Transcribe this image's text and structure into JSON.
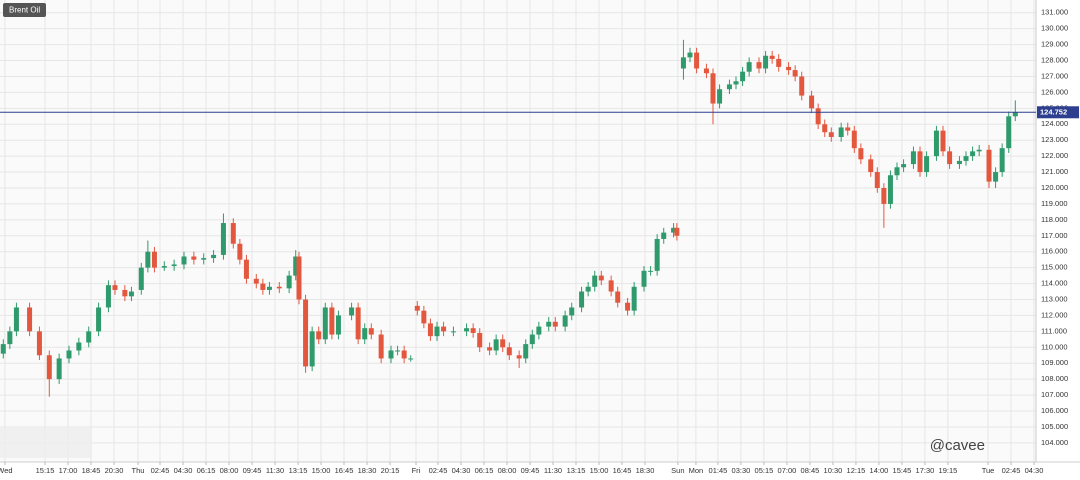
{
  "chart_data": {
    "type": "candlestick",
    "title": "Brent Oil",
    "watermark": "@cavee",
    "up_color": "#2f9a6c",
    "down_color": "#e4573f",
    "grid": true,
    "current_price": 124.752,
    "current_price_color": "#2e3f8f",
    "x": [
      1,
      3,
      5,
      9,
      12,
      15,
      18,
      21,
      24,
      27,
      30,
      33,
      35,
      38,
      40,
      43,
      45,
      47,
      50,
      53,
      56,
      59,
      62,
      65,
      68,
      71,
      73,
      75,
      78,
      80,
      82,
      85,
      88,
      90,
      91,
      93,
      95,
      97,
      99,
      101,
      103,
      107,
      109,
      111,
      113,
      116,
      119,
      121,
      123,
      125,
      127,
      129,
      131,
      133,
      135,
      138,
      142,
      144,
      146,
      149,
      151,
      153,
      155,
      158,
      160,
      162,
      164,
      167,
      169,
      172,
      174,
      177,
      179,
      181,
      183,
      186,
      188,
      191,
      193,
      196,
      198,
      200,
      202,
      205,
      206,
      208,
      210,
      212,
      215,
      217,
      219,
      222,
      224,
      226,
      228,
      231,
      233,
      235,
      237,
      240,
      242,
      244,
      247,
      249,
      251,
      253,
      256,
      258,
      260,
      262,
      265,
      267,
      269,
      271,
      273,
      275,
      278,
      280,
      282,
      285,
      287,
      289,
      292,
      294,
      296,
      298,
      301,
      303,
      305,
      307,
      309
    ],
    "open": [
      109.6,
      110.2,
      111,
      112.5,
      111,
      109.5,
      108,
      109.3,
      109.8,
      110.3,
      111,
      112.5,
      113.9,
      113.6,
      113.2,
      113.6,
      115,
      116,
      115,
      115.1,
      115.2,
      115.7,
      115.5,
      115.6,
      115.8,
      117.8,
      116.5,
      115.5,
      114.3,
      114,
      113.6,
      113.8,
      113.7,
      114.5,
      115.7,
      113,
      108.8,
      111,
      110.5,
      112.5,
      110.8,
      112,
      112.5,
      110.5,
      111.2,
      110.8,
      109.3,
      109.8,
      109.8,
      109.3,
      112.6,
      112.3,
      111.5,
      110.7,
      111.3,
      111,
      111,
      111.2,
      110.9,
      110,
      109.8,
      110.5,
      110,
      109.5,
      109.3,
      110.2,
      110.8,
      111.3,
      111.6,
      111.3,
      112,
      112.5,
      113.5,
      113.8,
      114.5,
      114.2,
      113.5,
      112.8,
      112.3,
      113.8,
      114.8,
      114.8,
      116.8,
      117.2,
      117.5,
      127.5,
      128.2,
      128.5,
      127.5,
      127.2,
      125.3,
      126.2,
      126.5,
      126.7,
      127.3,
      127.9,
      127.5,
      128.3,
      128.1,
      127.6,
      127.4,
      127,
      125.8,
      125,
      124,
      123.5,
      123.2,
      123.8,
      123.6,
      122.5,
      121.8,
      121,
      120,
      119,
      120.8,
      121.3,
      121.5,
      122.3,
      121,
      122,
      123.6,
      122.3,
      121.5,
      121.7,
      122,
      122.3,
      122.4,
      120.4,
      121,
      122.5,
      124.5
    ],
    "high": [
      110.5,
      111.3,
      112.8,
      112.8,
      111.3,
      109.8,
      109.6,
      110.1,
      110.6,
      111.3,
      112.8,
      114.2,
      114.2,
      113.9,
      113.8,
      115.3,
      116.7,
      116.3,
      115.4,
      115.5,
      116,
      116,
      115.9,
      116.1,
      118.4,
      118.1,
      116.8,
      115.8,
      114.6,
      114.3,
      114.1,
      114.1,
      114.8,
      116.1,
      116,
      113.3,
      111.3,
      111.3,
      112.8,
      112.8,
      112.3,
      112.8,
      112.8,
      111.5,
      111.5,
      111.1,
      110.1,
      110.1,
      110.1,
      109.5,
      112.9,
      112.6,
      111.8,
      111.6,
      111.6,
      111.3,
      111.5,
      111.5,
      111.2,
      110.3,
      110.8,
      110.8,
      110.3,
      109.8,
      110.5,
      111.1,
      111.6,
      111.9,
      111.9,
      112.3,
      112.8,
      113.8,
      114.1,
      114.8,
      114.8,
      114.5,
      113.8,
      113.1,
      114.1,
      115.1,
      115.1,
      117.1,
      117.5,
      117.8,
      117.8,
      129.3,
      128.8,
      128.8,
      127.8,
      127.5,
      126.5,
      126.8,
      127,
      127.6,
      128.2,
      128.2,
      128.6,
      128.6,
      128.4,
      127.9,
      127.7,
      127.3,
      126.1,
      125.3,
      124.3,
      123.8,
      124.1,
      124.1,
      123.9,
      122.8,
      122.1,
      121.3,
      120.3,
      121.1,
      121.6,
      121.8,
      122.6,
      122.6,
      122.3,
      123.9,
      123.9,
      122.6,
      122,
      122.3,
      122.6,
      122.7,
      122.7,
      121.3,
      122.8,
      124.8,
      125.5
    ],
    "low": [
      109.3,
      109.9,
      110.7,
      110.7,
      109.2,
      106.9,
      107.7,
      109,
      109.5,
      110,
      110.7,
      112.2,
      113.3,
      112.9,
      112.9,
      113.3,
      114.7,
      114.7,
      114.8,
      114.8,
      114.9,
      115.2,
      115.2,
      115.3,
      115.5,
      116.2,
      115.2,
      114,
      113.7,
      113.3,
      113.3,
      113.4,
      113.4,
      114.2,
      112.7,
      108.4,
      108.5,
      110.2,
      110.2,
      110.5,
      110.5,
      111.7,
      110.2,
      110.2,
      110.5,
      109,
      109,
      109.5,
      109,
      109.1,
      112,
      111.2,
      110.4,
      110.4,
      110.7,
      110.7,
      110.7,
      110.6,
      109.7,
      109.5,
      109.5,
      109.7,
      109.2,
      108.7,
      109,
      109.9,
      110.5,
      111,
      111,
      111,
      111.7,
      112.2,
      113.2,
      113.5,
      113.9,
      113.2,
      112.5,
      112,
      112,
      113.5,
      114.5,
      114.5,
      116.5,
      116.9,
      116.7,
      126.8,
      127.9,
      127.2,
      126.9,
      124,
      125,
      125.9,
      126.2,
      126.4,
      127,
      127.2,
      127.2,
      127.8,
      127.3,
      127.1,
      126.7,
      125.5,
      124.7,
      123.7,
      123.2,
      122.9,
      122.9,
      123.3,
      122.2,
      121.5,
      120.7,
      119.7,
      117.5,
      118.7,
      120.5,
      121,
      121.2,
      120.7,
      120.7,
      121.7,
      122,
      121.2,
      121.2,
      121.4,
      121.7,
      122,
      120,
      120,
      120.7,
      122.2,
      124.2
    ],
    "close": [
      110.2,
      111,
      112.5,
      111,
      109.5,
      108,
      109.3,
      109.8,
      110.3,
      111,
      112.5,
      113.9,
      113.6,
      113.2,
      113.5,
      115,
      116,
      115,
      115.1,
      115.2,
      115.7,
      115.5,
      115.6,
      115.8,
      117.8,
      116.5,
      115.5,
      114.3,
      114,
      113.6,
      113.8,
      113.7,
      114.5,
      115.7,
      113,
      108.8,
      111,
      110.5,
      112.5,
      110.8,
      112,
      112.5,
      110.5,
      111.2,
      110.8,
      109.3,
      109.8,
      109.8,
      109.3,
      109.3,
      112.3,
      111.5,
      110.7,
      111.3,
      111,
      111,
      111.2,
      110.9,
      110,
      109.8,
      110.5,
      110,
      109.5,
      109.3,
      110.2,
      110.8,
      111.3,
      111.6,
      111.3,
      112,
      112.5,
      113.5,
      113.8,
      114.5,
      114.2,
      113.5,
      112.8,
      112.3,
      113.8,
      114.8,
      114.8,
      116.8,
      117.2,
      117.5,
      117,
      128.2,
      128.5,
      127.5,
      127.2,
      125.3,
      126.2,
      126.5,
      126.7,
      127.3,
      127.9,
      127.5,
      128.3,
      128.1,
      127.6,
      127.4,
      127,
      125.8,
      125,
      124,
      123.5,
      123.2,
      123.8,
      123.6,
      122.5,
      121.8,
      121,
      120,
      119,
      120.8,
      121.3,
      121.5,
      122.3,
      121,
      122,
      123.6,
      122.3,
      121.5,
      121.7,
      122,
      122.3,
      122.4,
      120.4,
      121,
      122.5,
      124.5,
      124.752
    ],
    "xlim": [
      0,
      315.3
    ],
    "ylim": [
      102.8,
      131.8
    ],
    "xticks": [
      {
        "value": 1.5,
        "label": "Wed"
      },
      {
        "value": 13.7,
        "label": "15:15"
      },
      {
        "value": 20.7,
        "label": "17:00"
      },
      {
        "value": 27.7,
        "label": "18:45"
      },
      {
        "value": 34.7,
        "label": "20:30"
      },
      {
        "value": 42,
        "label": "Thu"
      },
      {
        "value": 48.7,
        "label": "02:45"
      },
      {
        "value": 55.7,
        "label": "04:30"
      },
      {
        "value": 62.7,
        "label": "06:15"
      },
      {
        "value": 69.7,
        "label": "08:00"
      },
      {
        "value": 76.7,
        "label": "09:45"
      },
      {
        "value": 83.7,
        "label": "11:30"
      },
      {
        "value": 90.7,
        "label": "13:15"
      },
      {
        "value": 97.7,
        "label": "15:00"
      },
      {
        "value": 104.7,
        "label": "16:45"
      },
      {
        "value": 111.7,
        "label": "18:30"
      },
      {
        "value": 118.7,
        "label": "20:15"
      },
      {
        "value": 126.6,
        "label": "Fri"
      },
      {
        "value": 133.3,
        "label": "02:45"
      },
      {
        "value": 140.3,
        "label": "04:30"
      },
      {
        "value": 147.3,
        "label": "06:15"
      },
      {
        "value": 154.3,
        "label": "08:00"
      },
      {
        "value": 161.3,
        "label": "09:45"
      },
      {
        "value": 168.3,
        "label": "11:30"
      },
      {
        "value": 175.3,
        "label": "13:15"
      },
      {
        "value": 182.3,
        "label": "15:00"
      },
      {
        "value": 189.3,
        "label": "16:45"
      },
      {
        "value": 196.3,
        "label": "18:30"
      },
      {
        "value": 206.3,
        "label": "Sun"
      },
      {
        "value": 211.8,
        "label": "Mon"
      },
      {
        "value": 218.5,
        "label": "01:45"
      },
      {
        "value": 225.5,
        "label": "03:30"
      },
      {
        "value": 232.5,
        "label": "05:15"
      },
      {
        "value": 239.5,
        "label": "07:00"
      },
      {
        "value": 246.5,
        "label": "08:45"
      },
      {
        "value": 253.5,
        "label": "10:30"
      },
      {
        "value": 260.5,
        "label": "12:15"
      },
      {
        "value": 267.5,
        "label": "14:00"
      },
      {
        "value": 274.5,
        "label": "15:45"
      },
      {
        "value": 281.5,
        "label": "17:30"
      },
      {
        "value": 288.5,
        "label": "19:15"
      },
      {
        "value": 300.7,
        "label": "Tue"
      },
      {
        "value": 307.7,
        "label": "02:45"
      },
      {
        "value": 314.7,
        "label": "04:30"
      }
    ],
    "yticks": [
      {
        "value": 104,
        "label": "104.000"
      },
      {
        "value": 105,
        "label": "105.000"
      },
      {
        "value": 106,
        "label": "106.000"
      },
      {
        "value": 107,
        "label": "107.000"
      },
      {
        "value": 108,
        "label": "108.000"
      },
      {
        "value": 109,
        "label": "109.000"
      },
      {
        "value": 110,
        "label": "110.000"
      },
      {
        "value": 111,
        "label": "111.000"
      },
      {
        "value": 112,
        "label": "112.000"
      },
      {
        "value": 113,
        "label": "113.000"
      },
      {
        "value": 114,
        "label": "114.000"
      },
      {
        "value": 115,
        "label": "115.000"
      },
      {
        "value": 116,
        "label": "116.000"
      },
      {
        "value": 117,
        "label": "117.000"
      },
      {
        "value": 118,
        "label": "118.000"
      },
      {
        "value": 119,
        "label": "119.000"
      },
      {
        "value": 120,
        "label": "120.000"
      },
      {
        "value": 121,
        "label": "121.000"
      },
      {
        "value": 122,
        "label": "122.000"
      },
      {
        "value": 123,
        "label": "123.000"
      },
      {
        "value": 124,
        "label": "124.000"
      },
      {
        "value": 125,
        "label": "125.000"
      },
      {
        "value": 126,
        "label": "126.000"
      },
      {
        "value": 127,
        "label": "127.000"
      },
      {
        "value": 128,
        "label": "128.000"
      },
      {
        "value": 129,
        "label": "129.000"
      },
      {
        "value": 130,
        "label": "130.000"
      },
      {
        "value": 131,
        "label": "131.000"
      }
    ]
  }
}
